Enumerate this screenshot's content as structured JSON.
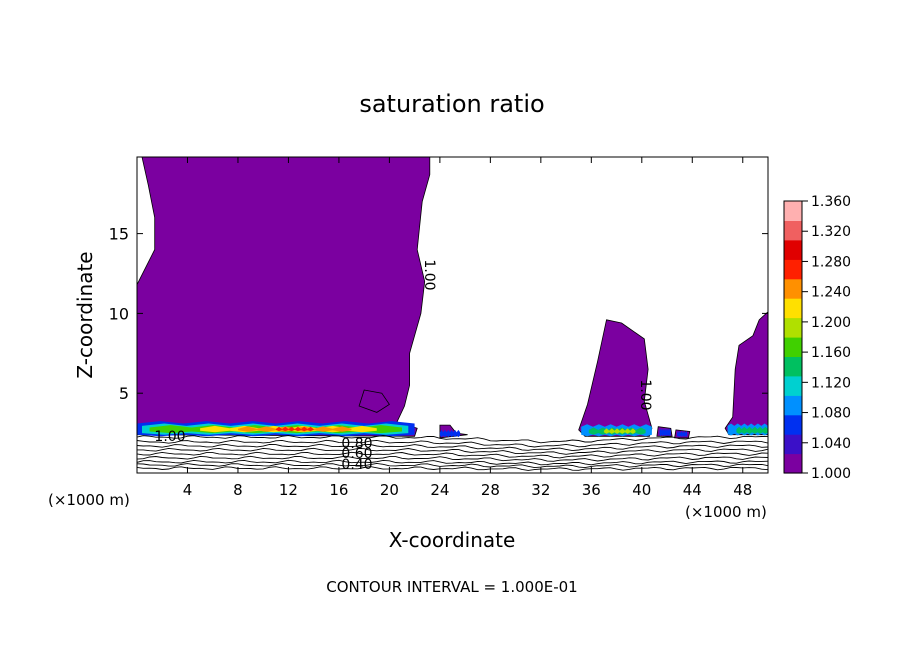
{
  "chart_data": {
    "type": "heatmap",
    "title": "saturation ratio",
    "xlabel": "X-coordinate",
    "ylabel": "Z-coordinate",
    "x_unit_left": "(×1000 m)",
    "x_unit_right": "(×1000 m)",
    "xlim": [
      0,
      50
    ],
    "ylim": [
      0,
      19.8
    ],
    "x_ticks": [
      4,
      8,
      12,
      16,
      20,
      24,
      28,
      32,
      36,
      40,
      44,
      48
    ],
    "y_ticks": [
      5,
      10,
      15
    ],
    "colorbar": {
      "ticks": [
        "1.360",
        "1.320",
        "1.280",
        "1.240",
        "1.200",
        "1.160",
        "1.120",
        "1.080",
        "1.040",
        "1.000"
      ],
      "min": 1.0,
      "max": 1.36,
      "colors": [
        "#7b00a0",
        "#3b10c8",
        "#0030f0",
        "#0090ff",
        "#00d0d0",
        "#00c060",
        "#40d000",
        "#b0e000",
        "#ffe000",
        "#ff9000",
        "#ff2000",
        "#e00000",
        "#f06060",
        "#ffb0b0"
      ]
    },
    "fill_color": "#7b00a0",
    "contour_labels": [
      "1.00",
      "1.00",
      "1.00",
      "0.80",
      "0.60",
      "0.40"
    ],
    "footer": "CONTOUR INTERVAL = 1.000E-01"
  }
}
